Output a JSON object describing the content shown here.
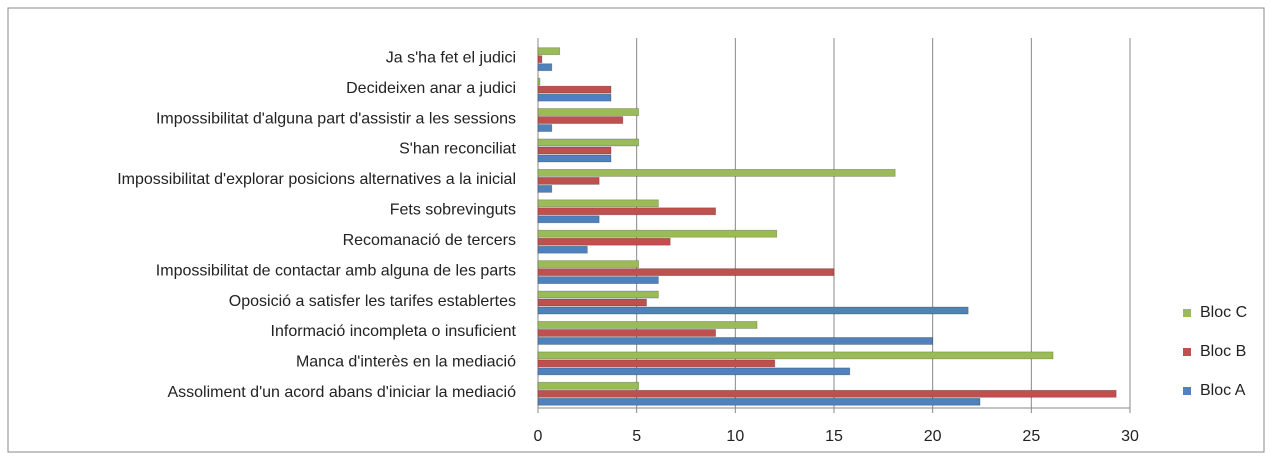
{
  "chart_data": {
    "type": "hbar",
    "categories": [
      "Assoliment d'un acord abans d'iniciar la mediació",
      "Manca d'interès en la mediació",
      "Informació incompleta o insuficient",
      "Oposició a satisfer les tarifes establertes",
      "Impossibilitat de contactar amb alguna de les parts",
      "Recomanació de tercers",
      "Fets sobrevinguts",
      "Impossibilitat d'explorar posicions alternatives a la inicial",
      "S'han reconciliat",
      "Impossibilitat d'alguna part d'assistir a les sessions",
      "Decideixen anar a judici",
      "Ja s'ha fet el judici"
    ],
    "series": [
      {
        "name": "Bloc A",
        "color": "#4f81bd",
        "values": [
          22.4,
          15.8,
          20.0,
          21.8,
          6.1,
          2.5,
          3.1,
          0.7,
          3.7,
          0.7,
          3.7,
          0.7
        ]
      },
      {
        "name": "Bloc B",
        "color": "#c0504d",
        "values": [
          29.3,
          12.0,
          9.0,
          5.5,
          15.0,
          6.7,
          9.0,
          3.1,
          3.7,
          4.3,
          3.7,
          0.2
        ]
      },
      {
        "name": "Bloc C",
        "color": "#9bbb59",
        "values": [
          5.1,
          26.1,
          11.1,
          6.1,
          5.1,
          12.1,
          6.1,
          18.1,
          5.1,
          5.1,
          0.1,
          1.1
        ]
      }
    ],
    "xlim": [
      0,
      30
    ],
    "xticks": [
      0,
      5,
      10,
      15,
      20,
      25,
      30
    ],
    "grid": true,
    "legend": "right"
  }
}
